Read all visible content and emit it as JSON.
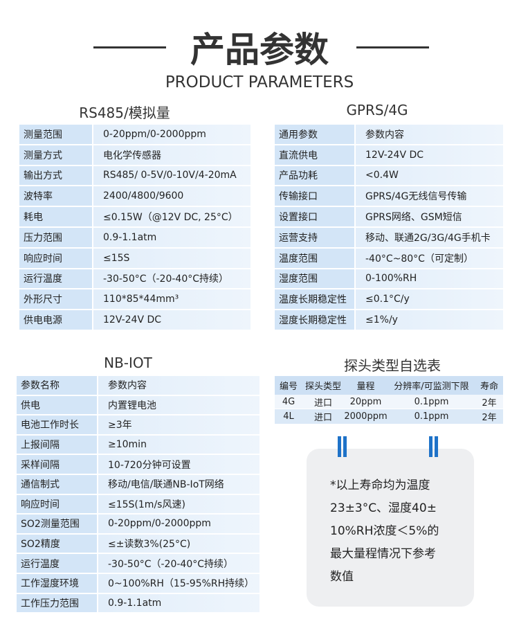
{
  "header": {
    "title": "产品参数",
    "subtitle": "PRODUCT PARAMETERS"
  },
  "sections": [
    {
      "title": "RS485/模拟量",
      "rows": [
        [
          "测量范围",
          "0-20ppm/0-2000ppm"
        ],
        [
          "测量方式",
          "电化学传感器"
        ],
        [
          "输出方式",
          "RS485/ 0-5V/0-10V/4-20mA"
        ],
        [
          "波特率",
          "2400/4800/9600"
        ],
        [
          "耗电",
          "≤0.15W（@12V DC, 25°C）"
        ],
        [
          "压力范围",
          "0.9-1.1atm"
        ],
        [
          "响应时间",
          "≤15S"
        ],
        [
          "运行温度",
          "-30-50°C（-20-40°C持续）"
        ],
        [
          "外形尺寸",
          "110*85*44mm³"
        ],
        [
          "供电电源",
          "12V-24V DC"
        ]
      ]
    },
    {
      "title": "GPRS/4G",
      "rows": [
        [
          "通用参数",
          "参数内容"
        ],
        [
          "直流供电",
          "12V-24V DC"
        ],
        [
          "产品功耗",
          "<0.4W"
        ],
        [
          "传输接口",
          "GPRS/4G无线信号传输"
        ],
        [
          "设置接口",
          "GPRS网络、GSM短信"
        ],
        [
          "运营支持",
          "移动、联通2G/3G/4G手机卡"
        ],
        [
          "温度范围",
          "-40°C~80°C（可定制）"
        ],
        [
          "湿度范围",
          "0-100%RH"
        ],
        [
          "温度长期稳定性",
          "≤0.1°C/y"
        ],
        [
          "湿度长期稳定性",
          "≤1%/y"
        ]
      ]
    },
    {
      "title": "NB-IOT",
      "rows": [
        [
          "参数名称",
          "参数内容"
        ],
        [
          "供电",
          "内置锂电池"
        ],
        [
          "电池工作时长",
          "≥3年"
        ],
        [
          "上报间隔",
          "≥10min"
        ],
        [
          "采样间隔",
          "10-720分钟可设置"
        ],
        [
          "通信制式",
          "移动/电信/联通NB-IoT网络"
        ],
        [
          "响应时间",
          "≤15S(1m/s风速)"
        ],
        [
          "SO2测量范围",
          "0-20ppm/0-2000ppm"
        ],
        [
          "SO2精度",
          "≤±读数3%(25°C)"
        ],
        [
          "运行温度",
          "-30-50°C（-20-40°C持续）"
        ],
        [
          "工作湿度环境",
          "0~100%RH（15-95%RH持续）"
        ],
        [
          "工作压力范围",
          "0.9-1.1atm"
        ]
      ]
    }
  ],
  "probe_table": {
    "title": "探头类型自选表",
    "columns": [
      "编号",
      "探头类型",
      "量程",
      "分辨率/可监测下限",
      "寿命"
    ],
    "rows": [
      [
        "4G",
        "进口",
        "20ppm",
        "0.1ppm",
        "2年"
      ],
      [
        "4L",
        "进口",
        "2000ppm",
        "0.1ppm",
        "2年"
      ]
    ]
  },
  "note": {
    "lines": [
      "*以上寿命均为温度",
      "23±3°C、湿度40±",
      "10%RH浓度＜5%的",
      "最大量程情况下参考",
      "数值"
    ]
  }
}
